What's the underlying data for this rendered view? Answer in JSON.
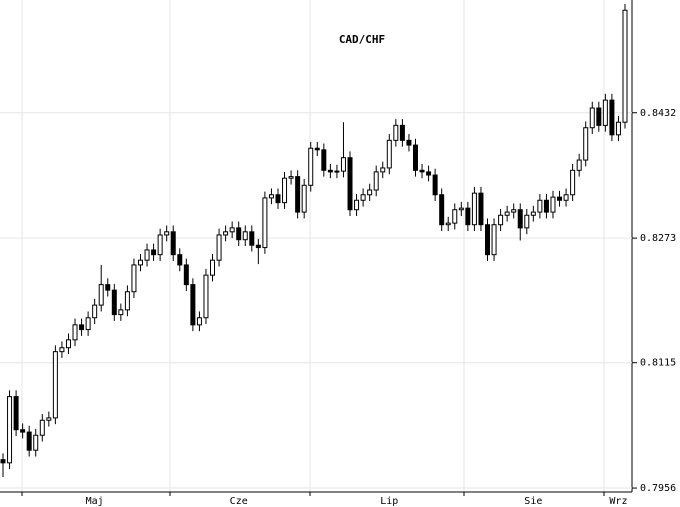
{
  "chart_data": {
    "type": "candlestick",
    "title": "CAD/CHF",
    "categories": [
      null,
      null,
      null,
      null,
      null,
      null,
      null,
      null,
      null,
      null,
      null,
      null,
      null,
      null,
      "Maj",
      null,
      null,
      null,
      null,
      null,
      null,
      null,
      null,
      null,
      null,
      null,
      null,
      null,
      null,
      null,
      null,
      null,
      null,
      null,
      null,
      null,
      "Cze",
      null,
      null,
      null,
      null,
      null,
      null,
      null,
      null,
      null,
      null,
      null,
      null,
      null,
      null,
      null,
      null,
      null,
      null,
      null,
      null,
      null,
      null,
      "Lip",
      null,
      null,
      null,
      null,
      null,
      null,
      null,
      null,
      null,
      null,
      null,
      null,
      null,
      null,
      null,
      null,
      null,
      null,
      null,
      null,
      null,
      "Sie",
      null,
      null,
      null,
      null,
      null,
      null,
      null,
      null,
      null,
      null,
      null,
      null,
      "Wrz",
      null
    ],
    "open": [
      0.7992,
      0.7988,
      0.8072,
      0.803,
      0.8027,
      0.8004,
      0.8023,
      0.8042,
      0.8045,
      0.8129,
      0.8134,
      0.8144,
      0.8163,
      0.8157,
      0.8172,
      0.8188,
      0.8214,
      0.8207,
      0.8176,
      0.8182,
      0.8205,
      0.8239,
      0.8245,
      0.8258,
      0.8252,
      0.8277,
      0.8281,
      0.8252,
      0.8239,
      0.8214,
      0.8163,
      0.8172,
      0.8226,
      0.8245,
      0.8277,
      0.8281,
      0.8286,
      0.8271,
      0.8281,
      0.8264,
      0.8261,
      0.8324,
      0.8328,
      0.8318,
      0.8349,
      0.8351,
      0.8306,
      0.834,
      0.8387,
      0.8385,
      0.8359,
      0.8357,
      0.8358,
      0.8375,
      0.8309,
      0.8321,
      0.8328,
      0.8334,
      0.8357,
      0.8362,
      0.8397,
      0.8416,
      0.8397,
      0.8391,
      0.8359,
      0.8357,
      0.8353,
      0.8328,
      0.829,
      0.8292,
      0.8309,
      0.8311,
      0.829,
      0.833,
      0.829,
      0.8252,
      0.829,
      0.8302,
      0.8306,
      0.8309,
      0.8286,
      0.8302,
      0.8306,
      0.8321,
      0.8306,
      0.8325,
      0.8321,
      0.8328,
      0.8359,
      0.8372,
      0.8413,
      0.8438,
      0.8416,
      0.8448,
      0.8404,
      0.842
    ],
    "high": [
      0.8,
      0.808,
      0.808,
      0.8038,
      0.8035,
      0.8031,
      0.805,
      0.8053,
      0.8137,
      0.8142,
      0.8152,
      0.8171,
      0.8171,
      0.818,
      0.8196,
      0.8239,
      0.8222,
      0.8215,
      0.819,
      0.8213,
      0.8247,
      0.8253,
      0.8266,
      0.8266,
      0.8285,
      0.8289,
      0.8289,
      0.826,
      0.8247,
      0.8222,
      0.818,
      0.8234,
      0.8253,
      0.8285,
      0.8289,
      0.8294,
      0.8294,
      0.8289,
      0.8289,
      0.8272,
      0.8332,
      0.8336,
      0.8336,
      0.8357,
      0.8359,
      0.8359,
      0.8348,
      0.8395,
      0.8395,
      0.8393,
      0.8367,
      0.8366,
      0.842,
      0.8383,
      0.8329,
      0.8336,
      0.8342,
      0.8365,
      0.837,
      0.8405,
      0.8424,
      0.8424,
      0.8405,
      0.8399,
      0.8367,
      0.8365,
      0.8361,
      0.8336,
      0.83,
      0.8317,
      0.8319,
      0.8319,
      0.8338,
      0.8338,
      0.8298,
      0.8298,
      0.831,
      0.8314,
      0.8317,
      0.8317,
      0.831,
      0.8314,
      0.8329,
      0.8329,
      0.8333,
      0.8333,
      0.8336,
      0.8367,
      0.838,
      0.8421,
      0.8446,
      0.8446,
      0.8456,
      0.8456,
      0.8428,
      0.857
    ],
    "low": [
      0.797,
      0.798,
      0.8022,
      0.8019,
      0.7996,
      0.7996,
      0.8015,
      0.8034,
      0.8037,
      0.8121,
      0.8126,
      0.8136,
      0.8149,
      0.8149,
      0.8164,
      0.818,
      0.8199,
      0.8168,
      0.8168,
      0.8174,
      0.8197,
      0.8231,
      0.8237,
      0.8244,
      0.8244,
      0.8269,
      0.8244,
      0.8231,
      0.8206,
      0.8155,
      0.8155,
      0.8164,
      0.8218,
      0.8237,
      0.8269,
      0.8273,
      0.8263,
      0.8263,
      0.8256,
      0.824,
      0.8253,
      0.8316,
      0.831,
      0.831,
      0.8341,
      0.8298,
      0.8298,
      0.8332,
      0.8377,
      0.8351,
      0.8349,
      0.8349,
      0.835,
      0.8301,
      0.8301,
      0.8313,
      0.832,
      0.8326,
      0.8349,
      0.8354,
      0.8389,
      0.8389,
      0.8383,
      0.8351,
      0.8349,
      0.8345,
      0.832,
      0.8282,
      0.8282,
      0.8284,
      0.8301,
      0.8282,
      0.8282,
      0.8282,
      0.8244,
      0.8244,
      0.8282,
      0.8294,
      0.8298,
      0.827,
      0.8278,
      0.8294,
      0.8298,
      0.8298,
      0.8298,
      0.8313,
      0.8313,
      0.832,
      0.8351,
      0.8364,
      0.8405,
      0.8408,
      0.8408,
      0.8396,
      0.8396,
      0.8412
    ],
    "close": [
      0.7988,
      0.8072,
      0.803,
      0.8027,
      0.8004,
      0.8023,
      0.8042,
      0.8045,
      0.8129,
      0.8134,
      0.8144,
      0.8163,
      0.8157,
      0.8172,
      0.8188,
      0.8214,
      0.8207,
      0.8176,
      0.8182,
      0.8205,
      0.8239,
      0.8245,
      0.8258,
      0.8252,
      0.8277,
      0.8281,
      0.8252,
      0.8239,
      0.8214,
      0.8163,
      0.8172,
      0.8226,
      0.8245,
      0.8277,
      0.8281,
      0.8286,
      0.8271,
      0.8281,
      0.8264,
      0.8261,
      0.8324,
      0.8328,
      0.8318,
      0.8349,
      0.8351,
      0.8306,
      0.834,
      0.8387,
      0.8385,
      0.8359,
      0.8357,
      0.8358,
      0.8375,
      0.8309,
      0.8321,
      0.8328,
      0.8334,
      0.8357,
      0.8362,
      0.8397,
      0.8416,
      0.8397,
      0.8391,
      0.8359,
      0.8357,
      0.8353,
      0.8328,
      0.829,
      0.8292,
      0.8309,
      0.8311,
      0.829,
      0.833,
      0.829,
      0.8252,
      0.829,
      0.8302,
      0.8306,
      0.8309,
      0.8286,
      0.8302,
      0.8306,
      0.8321,
      0.8306,
      0.8325,
      0.8321,
      0.8328,
      0.8359,
      0.8372,
      0.8413,
      0.8438,
      0.8416,
      0.8448,
      0.8404,
      0.842,
      0.8562
    ],
    "up_color": "#ffffff",
    "down_color": "#000000",
    "ylim": [
      0.7951,
      0.8575
    ],
    "yticks": [
      0.7956,
      0.8115,
      0.8273,
      0.8432
    ],
    "grid": true
  }
}
